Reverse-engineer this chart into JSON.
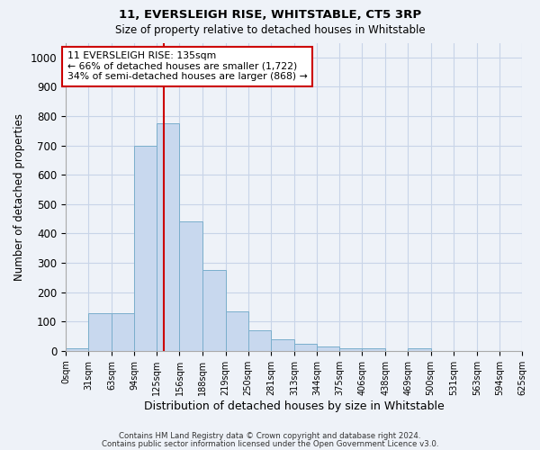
{
  "title1": "11, EVERSLEIGH RISE, WHITSTABLE, CT5 3RP",
  "title2": "Size of property relative to detached houses in Whitstable",
  "xlabel": "Distribution of detached houses by size in Whitstable",
  "ylabel": "Number of detached properties",
  "bar_edges": [
    0,
    31,
    63,
    94,
    125,
    156,
    188,
    219,
    250,
    281,
    313,
    344,
    375,
    406,
    438,
    469,
    500,
    531,
    563,
    594,
    625
  ],
  "bar_heights": [
    8,
    128,
    128,
    700,
    775,
    440,
    275,
    135,
    70,
    40,
    25,
    15,
    10,
    8,
    0,
    10,
    0,
    0,
    0,
    0
  ],
  "bar_color": "#c8d8ee",
  "bar_edgecolor": "#7aaecc",
  "redline_x": 135,
  "redline_color": "#cc0000",
  "annotation_line1": "11 EVERSLEIGH RISE: 135sqm",
  "annotation_line2": "← 66% of detached houses are smaller (1,722)",
  "annotation_line3": "34% of semi-detached houses are larger (868) →",
  "annotation_box_color": "white",
  "annotation_box_edgecolor": "#cc0000",
  "ylim": [
    0,
    1050
  ],
  "yticks": [
    0,
    100,
    200,
    300,
    400,
    500,
    600,
    700,
    800,
    900,
    1000
  ],
  "xtick_labels": [
    "0sqm",
    "31sqm",
    "63sqm",
    "94sqm",
    "125sqm",
    "156sqm",
    "188sqm",
    "219sqm",
    "250sqm",
    "281sqm",
    "313sqm",
    "344sqm",
    "375sqm",
    "406sqm",
    "438sqm",
    "469sqm",
    "500sqm",
    "531sqm",
    "563sqm",
    "594sqm",
    "625sqm"
  ],
  "grid_color": "#c8d4e8",
  "bg_color": "#eef2f8",
  "footnote1": "Contains HM Land Registry data © Crown copyright and database right 2024.",
  "footnote2": "Contains public sector information licensed under the Open Government Licence v3.0."
}
